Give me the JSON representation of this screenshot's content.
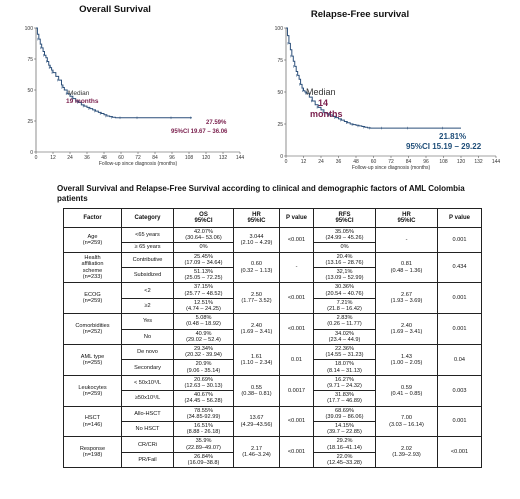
{
  "chart_data": [
    {
      "type": "line",
      "title": "Overall Survival",
      "xlabel": "Follow-up since diagnosis (months)",
      "ylabel": "",
      "xlim": [
        0,
        144
      ],
      "ylim": [
        0,
        100
      ],
      "x_ticks": [
        0,
        12,
        24,
        36,
        48,
        60,
        72,
        84,
        96,
        108,
        120,
        132,
        144
      ],
      "y_ticks": [
        0,
        25,
        50,
        75,
        100
      ],
      "grid": false,
      "series": [
        {
          "x": [
            0,
            1,
            2,
            3,
            4,
            5,
            6,
            7,
            8,
            9,
            10,
            11,
            12,
            14,
            16,
            18,
            19,
            20,
            22,
            24,
            26,
            28,
            30,
            32,
            34,
            36,
            38,
            40,
            42,
            44,
            46,
            48,
            50,
            52,
            54,
            56,
            60,
            66,
            72,
            84,
            96,
            108,
            110
          ],
          "y": [
            100,
            95,
            91,
            87,
            84,
            81,
            78,
            76,
            73,
            70,
            68,
            66,
            64,
            61,
            58,
            54,
            52,
            50,
            47,
            45,
            43,
            41,
            40,
            38,
            37,
            36,
            35,
            34,
            33,
            32,
            31,
            30,
            29,
            28.5,
            28,
            27.59,
            27.59,
            27.59,
            27.59,
            27.59,
            27.59,
            27.59,
            27.59
          ]
        }
      ],
      "annotations": {
        "median_label": "Median",
        "median_value": "19 months",
        "rate": "27.59%",
        "ci": "95%CI 19.67 – 36.06"
      }
    },
    {
      "type": "line",
      "title": "Relapse-Free survival",
      "xlabel": "Follow-up since diagnosis (months)",
      "ylabel": "",
      "xlim": [
        0,
        144
      ],
      "ylim": [
        0,
        100
      ],
      "x_ticks": [
        0,
        12,
        24,
        36,
        48,
        60,
        72,
        84,
        96,
        108,
        120,
        132,
        144
      ],
      "y_ticks": [
        0,
        25,
        50,
        75,
        100
      ],
      "grid": false,
      "series": [
        {
          "x": [
            0,
            1,
            2,
            3,
            4,
            5,
            6,
            7,
            8,
            9,
            10,
            11,
            12,
            13,
            14,
            16,
            18,
            20,
            22,
            24,
            26,
            28,
            30,
            32,
            34,
            36,
            38,
            40,
            42,
            44,
            46,
            48,
            50,
            52,
            54,
            56,
            58,
            60,
            66,
            72,
            84,
            96,
            108,
            120
          ],
          "y": [
            100,
            94,
            88,
            83,
            78,
            74,
            70,
            66,
            63,
            60,
            56,
            53,
            51,
            50,
            49,
            46,
            43,
            40,
            38,
            36,
            34,
            33,
            32,
            31,
            30,
            29,
            28,
            27,
            26,
            25,
            24.5,
            24,
            23.5,
            23,
            22.5,
            22,
            21.81,
            21.81,
            21.81,
            21.81,
            21.81,
            21.81,
            21.81,
            21.81
          ]
        }
      ],
      "annotations": {
        "median_label": "Median",
        "median_value": "14",
        "median_unit": "months",
        "rate": "21.81%",
        "ci": "95%CI 15.19 – 29.22"
      }
    }
  ],
  "table": {
    "heading": "Overall Survival and Relapse-Free Survival according to clinical and demographic factors of AML Colombia patients",
    "headers": [
      "Factor",
      "Category",
      "OS\n95%CI",
      "HR\n95%IC",
      "P value",
      "RFS\n95%CI",
      "HR\n95%IC",
      "P value"
    ],
    "groups": [
      {
        "factor": "Age\n(n=259)",
        "os_hr": "3.044\n(2.10 – 4.29)",
        "os_p": "<0.001",
        "rfs_hr": "-",
        "rfs_p": "0.001",
        "rows": [
          {
            "category": "<65 years",
            "os": "42.07%\n(30.64– 53.06)",
            "rfs": "35.05%\n(24.99 – 45.26)"
          },
          {
            "category": "≥ 65 years",
            "os": "0%",
            "rfs": "0%"
          }
        ]
      },
      {
        "factor": "Health\naffiliation\nscheme\n(n=233)",
        "os_hr": "0.60\n(0.32 – 1.13)",
        "os_p": "-",
        "rfs_hr": "0.81\n(0.48 – 1.36)",
        "rfs_p": "0.434",
        "rows": [
          {
            "category": "Contributive",
            "os": "25.45%\n(17.09 – 34.64)",
            "rfs": "20.4%\n(13.16 – 28.76)"
          },
          {
            "category": "Subsidized",
            "os": "51.13%\n(25.05 – 72.25)",
            "rfs": "32,1%\n(13.09 – 52.99)"
          }
        ]
      },
      {
        "factor": "ECOG\n(n=259)",
        "os_hr": "2.50\n(1.77– 3.52)",
        "os_p": "<0.001",
        "rfs_hr": "2.67\n(1.93 – 3.69)",
        "rfs_p": "0.001",
        "rows": [
          {
            "category": "<2",
            "os": "37.15%\n(25.77 – 48.52)",
            "rfs": "30.36%\n(20.54 – 40.76)"
          },
          {
            "category": "≥2",
            "os": "12.51%\n(4.74 – 24.25)",
            "rfs": "7.21%\n(21.8 – 16.42)"
          }
        ]
      },
      {
        "factor": "Comorbidities\n(n=252)",
        "os_hr": "2.40\n(1.69 – 3.41)",
        "os_p": "<0.001",
        "rfs_hr": "2.40\n(1.69 – 3.41)",
        "rfs_p": "0.001",
        "rows": [
          {
            "category": "Yes",
            "os": "5.08%\n(0.48 – 18.92)",
            "rfs": "2.83%\n(0.26 – 11.77)"
          },
          {
            "category": "No",
            "os": "40.9%\n(29.02 – 52.4)",
            "rfs": "34.02%\n(23.4 – 44.9)"
          }
        ]
      },
      {
        "factor": "AML type\n(n=255)",
        "os_hr": "1.61\n(1.10 – 2.34)",
        "os_p": "0.01",
        "rfs_hr": "1.43\n(1.00 – 2.05)",
        "rfs_p": "0.04",
        "rows": [
          {
            "category": "De novo",
            "os": "29.34%\n(20.32 - 39.94)",
            "rfs": "22.36%\n(14.55 – 31.23)"
          },
          {
            "category": "Secondary",
            "os": "20.9%\n(9.06 - 35.14)",
            "rfs": "18.07%\n(8.14 – 31.13)"
          }
        ]
      },
      {
        "factor": "Leukocytes\n(n=259)",
        "os_hr": "0.55\n(0.38– 0.81)",
        "os_p": "0.0017",
        "rfs_hr": "0.59\n(0.41 – 0.85)",
        "rfs_p": "0.003",
        "rows": [
          {
            "category": "< 50x10⁹/L",
            "os": "20.69%\n(12.63 – 30.13)",
            "rfs": "16.27%\n(9.71 – 24.32)"
          },
          {
            "category": "≥50x10⁹/L",
            "os": "40.67%\n(24.45 – 56.28)",
            "rfs": "31.83%\n(17.7 – 46.89)"
          }
        ]
      },
      {
        "factor": "HSCT\n(n=146)",
        "os_hr": "13.67\n(4.29–43.56)",
        "os_p": "<0.001",
        "rfs_hr": "7.00\n(3.03 – 16.14)",
        "rfs_p": "0.001",
        "rows": [
          {
            "category": "Allo-HSCT",
            "os": "78.55%\n(34.85-92.99)",
            "rfs": "68.69%\n(39.09 – 86.06)"
          },
          {
            "category": "No HSCT",
            "os": "16.51%\n(8.88 - 26.18)",
            "rfs": "14.15%\n(39.7 – 22.85)"
          }
        ]
      },
      {
        "factor": "Response\n(n=198)",
        "os_hr": "2.17\n(1.46–3.24)",
        "os_p": "<0.001",
        "rfs_hr": "2.02\n(1.39–2.93)",
        "rfs_p": "<0.001",
        "rows": [
          {
            "category": "CR/CRi",
            "os": "35.9%\n(22.89–49.07)",
            "rfs": "29.2%\n(18.16–41.14)"
          },
          {
            "category": "PR/Fail",
            "os": "26.84%\n(16.09–38.8)",
            "rfs": "22.0%\n(12.45–33.28)"
          }
        ]
      }
    ]
  }
}
